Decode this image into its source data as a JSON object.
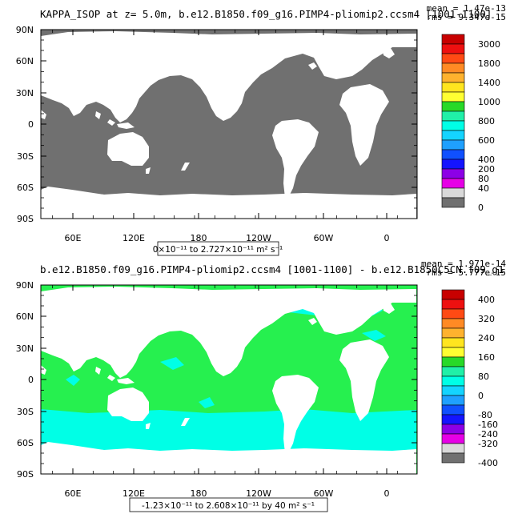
{
  "chart_data": [
    {
      "type": "heatmap",
      "title": "KAPPA_ISOP at z=    5.0m, b.e12.B1850.f09_g16.PIMP4-pliomip2.ccsm4 [1001-1100]",
      "stats": {
        "mean": "mean = 1.47e-13",
        "rms": "rms = 9.347e-15"
      },
      "range_note": "0×10⁻¹¹ to 2.727×10⁻¹¹ m² s⁻¹",
      "x_ticks": [
        "60E",
        "120E",
        "180",
        "120W",
        "60W",
        "0"
      ],
      "y_ticks": [
        "90N",
        "60N",
        "30N",
        "0",
        "30S",
        "60S",
        "90S"
      ],
      "colorbar": {
        "levels": [
          "3000",
          "1800",
          "1400",
          "1000",
          "800",
          "600",
          "400",
          "200",
          "80",
          "40",
          "0"
        ],
        "colors": [
          "#c80000",
          "#ee1010",
          "#ff4a14",
          "#ff8a24",
          "#ffb22e",
          "#ffe51f",
          "#ffff32",
          "#28d928",
          "#20f0a8",
          "#00ffe6",
          "#14d4ff",
          "#1fa0ff",
          "#1050ff",
          "#1414ff",
          "#8c00e6",
          "#e600e6",
          "#d9d9d9",
          "#707070"
        ]
      },
      "ocean_color": "#707070",
      "land_color": "#ffffff"
    },
    {
      "type": "heatmap",
      "title": "b.e12.B1850.f09_g16.PIMP4-pliomip2.ccsm4 [1001-1100] - b.e12.B1850C5CN.f09_g1",
      "stats": {
        "mean": "mean = 1.971e-14",
        "rms": "rms = 5.777e-15"
      },
      "range_note": "-1.23×10⁻¹¹ to 2.608×10⁻¹¹ by 40 m² s⁻¹",
      "x_ticks": [
        "60E",
        "120E",
        "180",
        "120W",
        "60W",
        "0"
      ],
      "y_ticks": [
        "90N",
        "60N",
        "30N",
        "0",
        "30S",
        "60S",
        "90S"
      ],
      "colorbar": {
        "levels": [
          "400",
          "320",
          "240",
          "160",
          "80",
          "0",
          "-80",
          "-160",
          "-240",
          "-320",
          "-400"
        ],
        "colors": [
          "#c80000",
          "#ee1010",
          "#ff4a14",
          "#ff8a24",
          "#ffb22e",
          "#ffe51f",
          "#ffff32",
          "#28d928",
          "#20f0a8",
          "#00ffe6",
          "#14d4ff",
          "#1fa0ff",
          "#1050ff",
          "#1414ff",
          "#8c00e6",
          "#e600e6",
          "#d9d9d9",
          "#707070"
        ]
      },
      "ocean_colors": {
        "positive": "#26f04f",
        "negative": "#00ffe6"
      },
      "land_color": "#ffffff"
    }
  ]
}
